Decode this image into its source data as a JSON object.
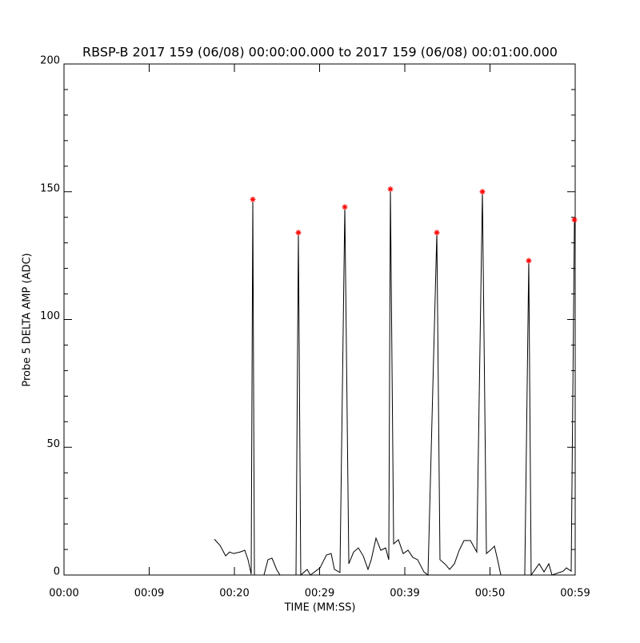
{
  "chart_data": {
    "type": "line",
    "title": "RBSP-B 2017 159 (06/08) 00:00:00.000 to 2017 159 (06/08) 00:01:00.000",
    "xlabel": "TIME (MM:SS)",
    "ylabel": "Probe 5 DELTA AMP (ADC)",
    "xlim": [
      0,
      60
    ],
    "ylim": [
      0,
      200
    ],
    "xticks": [
      {
        "value": 0,
        "label": "00:00"
      },
      {
        "value": 10,
        "label": "00:09"
      },
      {
        "value": 20,
        "label": "00:20"
      },
      {
        "value": 30,
        "label": "00:29"
      },
      {
        "value": 40,
        "label": "00:39"
      },
      {
        "value": 50,
        "label": "00:50"
      },
      {
        "value": 60,
        "label": "00:59"
      }
    ],
    "yticks": [
      0,
      50,
      100,
      150,
      200
    ],
    "series": [
      {
        "color": "#000000",
        "x": [
          17.65,
          18.31,
          18.97,
          19.44,
          19.91,
          20.66,
          21.22,
          21.6,
          21.97,
          22.16,
          22.35,
          23.47,
          23.94,
          24.41,
          24.98,
          25.35,
          27.23,
          27.51,
          27.79,
          28.54,
          28.92,
          30.05,
          30.8,
          31.36,
          31.74,
          32.39,
          32.96,
          33.43,
          33.99,
          34.55,
          35.12,
          35.68,
          36.06,
          36.62,
          37.18,
          37.75,
          38.12,
          38.31,
          38.69,
          39.25,
          39.81,
          40.38,
          40.94,
          41.5,
          42.25,
          42.72,
          43.76,
          44.13,
          44.69,
          45.26,
          45.82,
          46.39,
          46.95,
          47.7,
          48.45,
          49.11,
          49.58,
          50.14,
          50.52,
          50.89,
          51.27,
          54.08,
          54.55,
          54.83,
          55.77,
          56.34,
          56.9,
          57.28,
          58.59,
          58.97,
          59.53,
          59.91
        ],
        "values": [
          14,
          11.6,
          7.5,
          9,
          8.4,
          9,
          9.7,
          6,
          0.3,
          147,
          0,
          0,
          6,
          6.6,
          2,
          0,
          0,
          134,
          0,
          2.2,
          0,
          2.8,
          7.8,
          8.4,
          2.2,
          1,
          144,
          4.4,
          9,
          10.6,
          7.5,
          2.2,
          6,
          14.4,
          9.7,
          10.6,
          6,
          151,
          12.2,
          13.8,
          8.4,
          9.7,
          6.9,
          6,
          1.2,
          0,
          134,
          6,
          4.4,
          2.2,
          4.4,
          9.7,
          13.5,
          13.5,
          9,
          150,
          8.4,
          10,
          11.3,
          6,
          0,
          0,
          123,
          0,
          4.4,
          1.2,
          4.4,
          0,
          1.5,
          2.8,
          1.5,
          139
        ]
      },
      {
        "color": "#ff0000",
        "marker": "star",
        "x": [
          22.16,
          27.51,
          32.96,
          38.31,
          43.76,
          49.11,
          54.55,
          59.91
        ],
        "values": [
          147,
          134,
          144,
          151,
          134,
          150,
          123,
          139
        ]
      }
    ]
  }
}
